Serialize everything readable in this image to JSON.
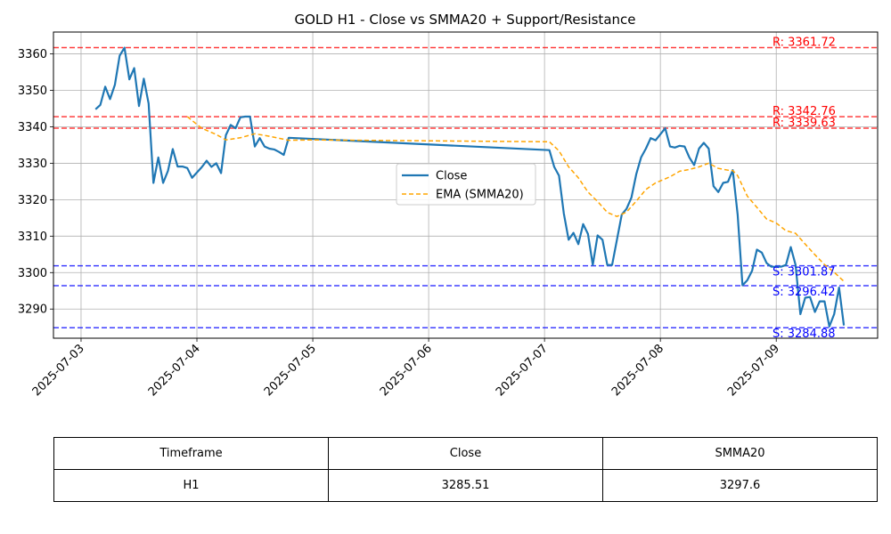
{
  "chart_data": {
    "type": "line",
    "title": "GOLD H1 - Close vs SMMA20 + Support/Resistance",
    "xlabel": "",
    "ylabel": "",
    "x_ticks": [
      "2025-07-03",
      "2025-07-04",
      "2025-07-05",
      "2025-07-06",
      "2025-07-07",
      "2025-07-08",
      "2025-07-09"
    ],
    "y_ticks": [
      3290,
      3300,
      3310,
      3320,
      3330,
      3340,
      3350,
      3360
    ],
    "xlim": [
      "2025-07-02 18:17",
      "2025-07-09 21:00"
    ],
    "ylim": [
      3282,
      3366
    ],
    "grid": true,
    "legend_position": "center-right",
    "series": [
      {
        "name": "Close",
        "color": "#1f77b4",
        "style": "solid",
        "points": [
          [
            "2025-07-03 03:00",
            3344.8
          ],
          [
            "2025-07-03 04:00",
            3346.0
          ],
          [
            "2025-07-03 05:00",
            3351.0
          ],
          [
            "2025-07-03 06:00",
            3347.6
          ],
          [
            "2025-07-03 07:00",
            3351.5
          ],
          [
            "2025-07-03 08:00",
            3359.5
          ],
          [
            "2025-07-03 09:00",
            3361.7
          ],
          [
            "2025-07-03 10:00",
            3353.0
          ],
          [
            "2025-07-03 11:00",
            3356.1
          ],
          [
            "2025-07-03 12:00",
            3345.7
          ],
          [
            "2025-07-03 13:00",
            3353.2
          ],
          [
            "2025-07-03 14:00",
            3346.4
          ],
          [
            "2025-07-03 15:00",
            3324.6
          ],
          [
            "2025-07-03 16:00",
            3331.6
          ],
          [
            "2025-07-03 17:00",
            3324.6
          ],
          [
            "2025-07-03 18:00",
            3327.9
          ],
          [
            "2025-07-03 19:00",
            3333.9
          ],
          [
            "2025-07-03 20:00",
            3329.1
          ],
          [
            "2025-07-03 21:00",
            3329.1
          ],
          [
            "2025-07-03 22:00",
            3328.7
          ],
          [
            "2025-07-03 23:00",
            3326.0
          ],
          [
            "2025-07-04 01:00",
            3328.9
          ],
          [
            "2025-07-04 02:00",
            3330.7
          ],
          [
            "2025-07-04 03:00",
            3329.0
          ],
          [
            "2025-07-04 04:00",
            3330.0
          ],
          [
            "2025-07-04 05:00",
            3327.3
          ],
          [
            "2025-07-04 06:00",
            3337.7
          ],
          [
            "2025-07-04 07:00",
            3340.5
          ],
          [
            "2025-07-04 08:00",
            3339.6
          ],
          [
            "2025-07-04 09:00",
            3342.6
          ],
          [
            "2025-07-04 10:00",
            3342.8
          ],
          [
            "2025-07-04 11:00",
            3342.8
          ],
          [
            "2025-07-04 12:00",
            3334.6
          ],
          [
            "2025-07-04 13:00",
            3336.9
          ],
          [
            "2025-07-04 14:00",
            3334.6
          ],
          [
            "2025-07-04 15:00",
            3334.0
          ],
          [
            "2025-07-04 16:00",
            3333.8
          ],
          [
            "2025-07-04 17:00",
            3333.1
          ],
          [
            "2025-07-04 18:00",
            3332.3
          ],
          [
            "2025-07-04 19:00",
            3337.0
          ],
          [
            "2025-07-07 01:00",
            3333.6
          ],
          [
            "2025-07-07 02:00",
            3329.0
          ],
          [
            "2025-07-07 03:00",
            3326.6
          ],
          [
            "2025-07-07 04:00",
            3316.2
          ],
          [
            "2025-07-07 05:00",
            3309.0
          ],
          [
            "2025-07-07 06:00",
            3310.9
          ],
          [
            "2025-07-07 07:00",
            3307.8
          ],
          [
            "2025-07-07 08:00",
            3313.3
          ],
          [
            "2025-07-07 09:00",
            3310.6
          ],
          [
            "2025-07-07 10:00",
            3302.1
          ],
          [
            "2025-07-07 11:00",
            3310.2
          ],
          [
            "2025-07-07 12:00",
            3309.0
          ],
          [
            "2025-07-07 13:00",
            3302.1
          ],
          [
            "2025-07-07 14:00",
            3302.1
          ],
          [
            "2025-07-07 15:00",
            3309.0
          ],
          [
            "2025-07-07 16:00",
            3315.9
          ],
          [
            "2025-07-07 17:00",
            3317.5
          ],
          [
            "2025-07-07 18:00",
            3320.6
          ],
          [
            "2025-07-07 19:00",
            3327.0
          ],
          [
            "2025-07-07 20:00",
            3331.6
          ],
          [
            "2025-07-07 21:00",
            3334.0
          ],
          [
            "2025-07-07 22:00",
            3336.9
          ],
          [
            "2025-07-07 23:00",
            3336.3
          ],
          [
            "2025-07-08 01:00",
            3339.6
          ],
          [
            "2025-07-08 02:00",
            3334.6
          ],
          [
            "2025-07-08 03:00",
            3334.3
          ],
          [
            "2025-07-08 04:00",
            3334.8
          ],
          [
            "2025-07-08 05:00",
            3334.6
          ],
          [
            "2025-07-08 06:00",
            3331.6
          ],
          [
            "2025-07-08 07:00",
            3329.5
          ],
          [
            "2025-07-08 08:00",
            3334.0
          ],
          [
            "2025-07-08 09:00",
            3335.6
          ],
          [
            "2025-07-08 10:00",
            3334.0
          ],
          [
            "2025-07-08 11:00",
            3323.7
          ],
          [
            "2025-07-08 12:00",
            3322.1
          ],
          [
            "2025-07-08 13:00",
            3324.6
          ],
          [
            "2025-07-08 14:00",
            3324.9
          ],
          [
            "2025-07-08 15:00",
            3328.1
          ],
          [
            "2025-07-08 16:00",
            3315.9
          ],
          [
            "2025-07-08 17:00",
            3296.5
          ],
          [
            "2025-07-08 18:00",
            3297.9
          ],
          [
            "2025-07-08 19:00",
            3300.5
          ],
          [
            "2025-07-08 20:00",
            3306.3
          ],
          [
            "2025-07-08 21:00",
            3305.5
          ],
          [
            "2025-07-08 22:00",
            3302.6
          ],
          [
            "2025-07-08 23:00",
            3301.6
          ],
          [
            "2025-07-09 01:00",
            3301.6
          ],
          [
            "2025-07-09 02:00",
            3302.1
          ],
          [
            "2025-07-09 03:00",
            3307.0
          ],
          [
            "2025-07-09 04:00",
            3302.1
          ],
          [
            "2025-07-09 05:00",
            3288.6
          ],
          [
            "2025-07-09 06:00",
            3293.1
          ],
          [
            "2025-07-09 07:00",
            3293.3
          ],
          [
            "2025-07-09 08:00",
            3289.2
          ],
          [
            "2025-07-09 09:00",
            3292.1
          ],
          [
            "2025-07-09 10:00",
            3292.1
          ],
          [
            "2025-07-09 11:00",
            3285.2
          ],
          [
            "2025-07-09 12:00",
            3288.6
          ],
          [
            "2025-07-09 13:00",
            3295.9
          ],
          [
            "2025-07-09 14:00",
            3285.5
          ]
        ]
      },
      {
        "name": "EMA (SMMA20)",
        "color": "#ffa500",
        "style": "dashed",
        "points": [
          [
            "2025-07-03 22:00",
            3342.8
          ],
          [
            "2025-07-04 01:00",
            3339.6
          ],
          [
            "2025-07-04 04:00",
            3337.9
          ],
          [
            "2025-07-04 06:00",
            3336.4
          ],
          [
            "2025-07-04 09:00",
            3337.0
          ],
          [
            "2025-07-04 12:00",
            3338.1
          ],
          [
            "2025-07-04 15:00",
            3337.4
          ],
          [
            "2025-07-04 19:00",
            3336.3
          ],
          [
            "2025-07-05 00:00",
            3336.4
          ],
          [
            "2025-07-07 01:00",
            3335.9
          ],
          [
            "2025-07-07 03:00",
            3333.4
          ],
          [
            "2025-07-07 05:00",
            3329.0
          ],
          [
            "2025-07-07 07:00",
            3326.0
          ],
          [
            "2025-07-07 09:00",
            3322.1
          ],
          [
            "2025-07-07 11:00",
            3319.5
          ],
          [
            "2025-07-07 13:00",
            3316.5
          ],
          [
            "2025-07-07 15:00",
            3315.4
          ],
          [
            "2025-07-07 17:00",
            3316.6
          ],
          [
            "2025-07-07 19:00",
            3319.6
          ],
          [
            "2025-07-07 21:00",
            3322.8
          ],
          [
            "2025-07-07 23:00",
            3324.6
          ],
          [
            "2025-07-08 02:00",
            3326.3
          ],
          [
            "2025-07-08 04:00",
            3327.8
          ],
          [
            "2025-07-08 06:00",
            3328.3
          ],
          [
            "2025-07-08 08:00",
            3329.0
          ],
          [
            "2025-07-08 10:00",
            3330.0
          ],
          [
            "2025-07-08 12:00",
            3328.6
          ],
          [
            "2025-07-08 14:00",
            3328.1
          ],
          [
            "2025-07-08 15:00",
            3328.0
          ],
          [
            "2025-07-08 16:00",
            3326.6
          ],
          [
            "2025-07-08 18:00",
            3321.0
          ],
          [
            "2025-07-08 20:00",
            3317.9
          ],
          [
            "2025-07-08 22:00",
            3314.7
          ],
          [
            "2025-07-09 00:00",
            3313.6
          ],
          [
            "2025-07-09 02:00",
            3311.5
          ],
          [
            "2025-07-09 04:00",
            3310.8
          ],
          [
            "2025-07-09 06:00",
            3307.8
          ],
          [
            "2025-07-09 08:00",
            3304.9
          ],
          [
            "2025-07-09 10:00",
            3302.2
          ],
          [
            "2025-07-09 12:00",
            3300.1
          ],
          [
            "2025-07-09 14:00",
            3297.6
          ]
        ]
      }
    ],
    "levels": [
      {
        "kind": "resistance",
        "label": "R: 3361.72",
        "value": 3361.72,
        "color": "#ff0000"
      },
      {
        "kind": "resistance",
        "label": "R: 3342.76",
        "value": 3342.76,
        "color": "#ff0000"
      },
      {
        "kind": "resistance",
        "label": "R: 3339.63",
        "value": 3339.63,
        "color": "#ff0000"
      },
      {
        "kind": "support",
        "label": "S: 3301.87",
        "value": 3301.87,
        "color": "#0000ff"
      },
      {
        "kind": "support",
        "label": "S: 3296.42",
        "value": 3296.42,
        "color": "#0000ff"
      },
      {
        "kind": "support",
        "label": "S: 3284.88",
        "value": 3284.88,
        "color": "#0000ff"
      }
    ]
  },
  "table": {
    "headers": [
      "Timeframe",
      "Close",
      "SMMA20"
    ],
    "row": [
      "H1",
      "3285.51",
      "3297.6"
    ]
  }
}
